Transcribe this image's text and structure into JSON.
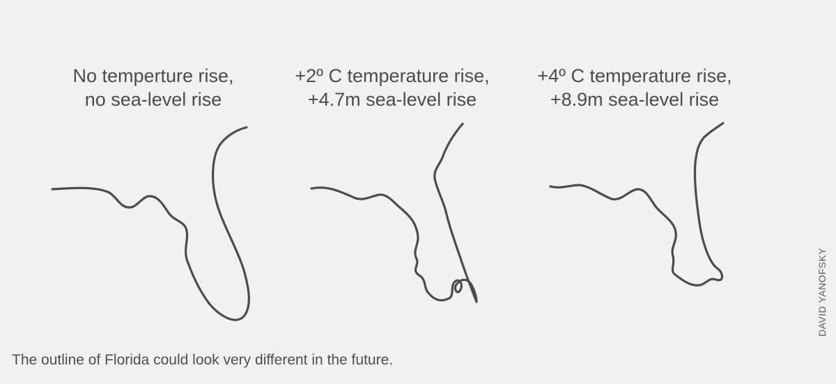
{
  "panels": [
    {
      "line1": "No temperture rise,",
      "line2": "no sea-level rise",
      "shape": "florida-outline-current"
    },
    {
      "line1": "+2º C temperature rise,",
      "line2": "+4.7m sea-level rise",
      "shape": "florida-outline-plus-2c"
    },
    {
      "line1": "+4º C temperature rise,",
      "line2": "+8.9m sea-level rise",
      "shape": "florida-outline-plus-4c"
    }
  ],
  "caption": "The outline of Florida could look very different in the future.",
  "credit": "DAVID YANOFSKY",
  "colors": {
    "background": "#f1f1f0",
    "line": "#4b4b4b",
    "text": "#4c4c4c"
  }
}
